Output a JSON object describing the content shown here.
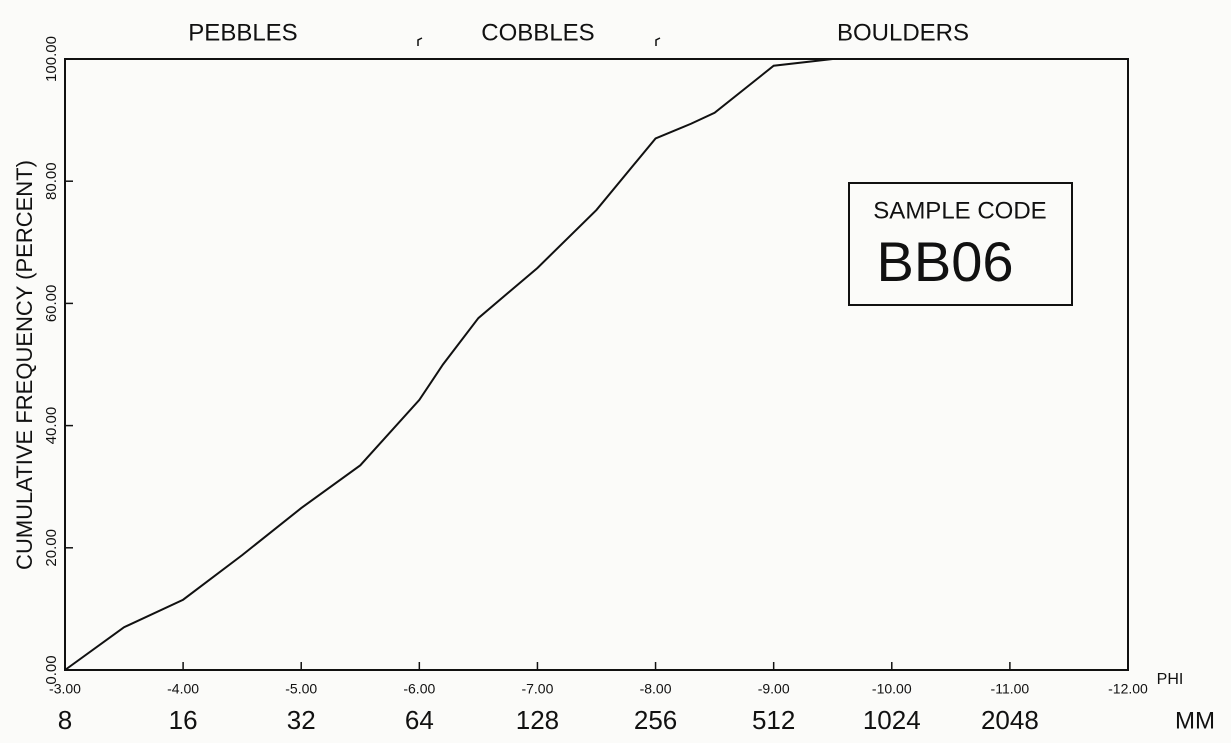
{
  "chart_data": {
    "type": "line",
    "y_label": "CUMULATIVE FREQUENCY (PERCENT)",
    "x_label": "PHI",
    "x2_label": "MM",
    "size_classes": [
      "PEBBLES",
      "COBBLES",
      "BOULDERS"
    ],
    "annotations": [
      "SAMPLE CODE",
      "BB06"
    ],
    "x": [
      -3,
      -3.5,
      -4,
      -4.5,
      -5,
      -5.5,
      -6,
      -6.2,
      -6.5,
      -7,
      -7.5,
      -8,
      -8.3,
      -8.5,
      -9,
      -9.5,
      -12
    ],
    "series": [
      {
        "name": "BB06",
        "color": "#111111",
        "values": [
          0,
          7,
          11.5,
          18.8,
          26.5,
          33.5,
          44.2,
          50,
          57.6,
          65.8,
          75.3,
          87,
          89.4,
          91.2,
          98.9,
          100,
          100
        ]
      }
    ],
    "xlim": [
      -3,
      -12
    ],
    "xticks": [
      {
        "value": -3,
        "label": "-3.00"
      },
      {
        "value": -4,
        "label": "-4.00"
      },
      {
        "value": -5,
        "label": "-5.00"
      },
      {
        "value": -6,
        "label": "-6.00"
      },
      {
        "value": -7,
        "label": "-7.00"
      },
      {
        "value": -8,
        "label": "-8.00"
      },
      {
        "value": -9,
        "label": "-9.00"
      },
      {
        "value": -10,
        "label": "-10.00"
      },
      {
        "value": -11,
        "label": "-11.00"
      },
      {
        "value": -12,
        "label": "-12.00"
      }
    ],
    "mm_labels": [
      8,
      16,
      32,
      64,
      128,
      256,
      512,
      1024,
      2048
    ],
    "ylim": [
      0,
      100
    ],
    "yticks": [
      {
        "value": 0,
        "label": "0.00"
      },
      {
        "value": 20,
        "label": "20.00"
      },
      {
        "value": 40,
        "label": "40.00"
      },
      {
        "value": 60,
        "label": "60.00"
      },
      {
        "value": 80,
        "label": "80.00"
      },
      {
        "value": 100,
        "label": "100.00"
      }
    ],
    "grid": false
  }
}
